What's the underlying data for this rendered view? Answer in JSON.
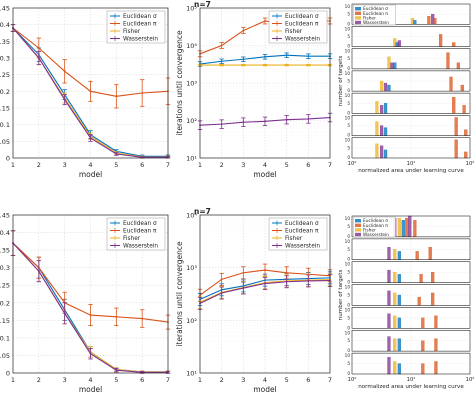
{
  "colors": {
    "euclid_sigma": "#0072BD",
    "euclid_pi": "#D95319",
    "fisher": "#EDB120",
    "wasserstein": "#7E2F8E",
    "grid": "#dcdcdc",
    "axis": "#262626"
  },
  "legend_labels": [
    "Euclidean σ",
    "Euclidean π",
    "Fisher",
    "Wasserstein"
  ],
  "chart_data": [
    {
      "id": "top-left",
      "type": "line",
      "xlabel": "model",
      "ylabel": "divergence values",
      "x": [
        1,
        2,
        3,
        4,
        5,
        6,
        7
      ],
      "xlim": [
        1,
        7
      ],
      "ylim": [
        0,
        0.45
      ],
      "xticks": [
        "1",
        "2",
        "3",
        "4",
        "5",
        "6",
        "7"
      ],
      "yticks": [
        "0",
        "0.05",
        "0.1",
        "0.15",
        "0.2",
        "0.25",
        "0.3",
        "0.35",
        "0.4",
        "0.45"
      ],
      "legend": "top-right",
      "series": [
        {
          "name": "Euclidean σ",
          "key": "euclid_sigma",
          "values": [
            0.39,
            0.31,
            0.19,
            0.07,
            0.02,
            0.005,
            0.005
          ],
          "err": [
            0.01,
            0.02,
            0.015,
            0.012,
            0.005,
            0.004,
            0.004
          ]
        },
        {
          "name": "Euclidean π",
          "key": "euclid_pi",
          "values": [
            0.39,
            0.33,
            0.26,
            0.2,
            0.185,
            0.195,
            0.2
          ],
          "err": [
            0.01,
            0.03,
            0.035,
            0.03,
            0.035,
            0.04,
            0.04
          ]
        },
        {
          "name": "Fisher",
          "key": "fisher",
          "values": [
            0.39,
            0.3,
            0.18,
            0.065,
            0.015,
            0.003,
            0.003
          ],
          "err": [
            0.01,
            0.02,
            0.015,
            0.01,
            0.004,
            0.003,
            0.003
          ]
        },
        {
          "name": "Wasserstein",
          "key": "wasserstein",
          "values": [
            0.39,
            0.3,
            0.175,
            0.06,
            0.012,
            0.002,
            0.002
          ],
          "err": [
            0.01,
            0.02,
            0.015,
            0.01,
            0.004,
            0.002,
            0.002
          ]
        }
      ]
    },
    {
      "id": "top-middle",
      "type": "line",
      "log_y": true,
      "title": "n=7",
      "xlabel": "model",
      "ylabel": "iterations until convergence",
      "x": [
        1,
        2,
        3,
        4,
        5,
        6,
        7
      ],
      "xlim": [
        1,
        7
      ],
      "ylim": [
        10,
        100000
      ],
      "xticks": [
        "1",
        "2",
        "3",
        "4",
        "5",
        "6",
        "7"
      ],
      "yticks": [
        "10¹",
        "10²",
        "10³",
        "10⁴",
        "10⁵"
      ],
      "legend": "top-right",
      "series": [
        {
          "name": "Euclidean σ",
          "key": "euclid_sigma",
          "values": [
            3200,
            3800,
            4300,
            5000,
            5500,
            5200,
            5200
          ],
          "err": [
            1.15,
            1.15,
            1.15,
            1.15,
            1.15,
            1.15,
            1.15
          ]
        },
        {
          "name": "Euclidean π",
          "key": "euclid_pi",
          "values": [
            6000,
            10000,
            25000,
            45000,
            35000,
            45000,
            45000
          ],
          "err": [
            1.2,
            1.2,
            1.2,
            1.2,
            1.2,
            1.2,
            1.2
          ]
        },
        {
          "name": "Fisher",
          "key": "fisher",
          "values": [
            3000,
            3000,
            3000,
            3000,
            3000,
            3000,
            3000
          ],
          "err": [
            1.05,
            1.05,
            1.05,
            1.05,
            1.05,
            1.05,
            1.05
          ]
        },
        {
          "name": "Wasserstein",
          "key": "wasserstein",
          "values": [
            75,
            80,
            90,
            95,
            105,
            110,
            120
          ],
          "err": [
            1.3,
            1.3,
            1.3,
            1.3,
            1.3,
            1.3,
            1.3
          ]
        }
      ]
    },
    {
      "id": "bottom-left",
      "type": "line",
      "xlabel": "model",
      "ylabel": "divergence values",
      "x": [
        1,
        2,
        3,
        4,
        5,
        6,
        7
      ],
      "xlim": [
        1,
        7
      ],
      "ylim": [
        0,
        0.45
      ],
      "xticks": [
        "1",
        "2",
        "3",
        "4",
        "5",
        "6",
        "7"
      ],
      "yticks": [
        "0",
        "0.05",
        "0.1",
        "0.15",
        "0.2",
        "0.25",
        "0.3",
        "0.35",
        "0.4",
        "0.45"
      ],
      "legend": "top-right",
      "series": [
        {
          "name": "Euclidean σ",
          "key": "euclid_sigma",
          "values": [
            0.37,
            0.3,
            0.18,
            0.06,
            0.01,
            0.003,
            0.003
          ],
          "err": [
            0.035,
            0.03,
            0.03,
            0.015,
            0.005,
            0.003,
            0.003
          ]
        },
        {
          "name": "Euclidean π",
          "key": "euclid_pi",
          "values": [
            0.37,
            0.3,
            0.2,
            0.165,
            0.16,
            0.155,
            0.145
          ],
          "err": [
            0.035,
            0.03,
            0.03,
            0.03,
            0.025,
            0.025,
            0.02
          ]
        },
        {
          "name": "Fisher",
          "key": "fisher",
          "values": [
            0.37,
            0.29,
            0.17,
            0.06,
            0.01,
            0.003,
            0.003
          ],
          "err": [
            0.035,
            0.03,
            0.03,
            0.015,
            0.005,
            0.003,
            0.003
          ]
        },
        {
          "name": "Wasserstein",
          "key": "wasserstein",
          "values": [
            0.37,
            0.29,
            0.17,
            0.055,
            0.008,
            0.002,
            0.002
          ],
          "err": [
            0.035,
            0.03,
            0.03,
            0.015,
            0.005,
            0.003,
            0.003
          ]
        }
      ]
    },
    {
      "id": "bottom-middle",
      "type": "line",
      "log_y": true,
      "title": "n=7",
      "xlabel": "model",
      "ylabel": "iterations until convergence",
      "x": [
        1,
        2,
        3,
        4,
        5,
        6,
        7
      ],
      "xlim": [
        1,
        7
      ],
      "ylim": [
        10,
        10000
      ],
      "xticks": [
        "1",
        "2",
        "3",
        "4",
        "5",
        "6",
        "7"
      ],
      "yticks": [
        "10¹",
        "10²",
        "10³",
        "10⁴"
      ],
      "legend": "top-right",
      "series": [
        {
          "name": "Euclidean σ",
          "key": "euclid_sigma",
          "values": [
            250,
            380,
            450,
            580,
            600,
            620,
            640
          ],
          "err": [
            1.3,
            1.3,
            1.3,
            1.3,
            1.3,
            1.3,
            1.3
          ]
        },
        {
          "name": "Euclidean π",
          "key": "euclid_pi",
          "values": [
            300,
            600,
            800,
            900,
            800,
            750,
            700
          ],
          "err": [
            1.3,
            1.3,
            1.3,
            1.3,
            1.3,
            1.3,
            1.3
          ]
        },
        {
          "name": "Fisher",
          "key": "fisher",
          "values": [
            220,
            340,
            420,
            520,
            560,
            580,
            590
          ],
          "err": [
            1.3,
            1.3,
            1.3,
            1.3,
            1.3,
            1.3,
            1.3
          ]
        },
        {
          "name": "Wasserstein",
          "key": "wasserstein",
          "values": [
            210,
            330,
            410,
            500,
            540,
            560,
            570
          ],
          "err": [
            1.3,
            1.3,
            1.3,
            1.3,
            1.3,
            1.3,
            1.3
          ]
        }
      ]
    },
    {
      "id": "top-right",
      "type": "bar",
      "subtype": "histogram-stack",
      "log_x": true,
      "xlabel": "normalized area under learning curve",
      "ylabel": "number of targets",
      "xlim": [
        1,
        100
      ],
      "xticks": [
        "10⁰",
        "10¹",
        "10²"
      ],
      "ylim": [
        0,
        10
      ],
      "yticks": [
        "0",
        "5",
        "10"
      ],
      "panels": [
        {
          "model": 1,
          "bars": [
            {
              "key": "fisher",
              "x": 10,
              "h": 3
            },
            {
              "key": "euclid_sigma",
              "x": 11,
              "h": 2
            },
            {
              "key": "euclid_pi",
              "x": 19,
              "h": 4
            },
            {
              "key": "wasserstein",
              "x": 22,
              "h": 5
            },
            {
              "key": "euclid_pi",
              "x": 24,
              "h": 3
            }
          ]
        },
        {
          "model": 2,
          "bars": [
            {
              "key": "fisher",
              "x": 5,
              "h": 4
            },
            {
              "key": "euclid_sigma",
              "x": 5.5,
              "h": 2
            },
            {
              "key": "wasserstein",
              "x": 6,
              "h": 3
            },
            {
              "key": "euclid_pi",
              "x": 30,
              "h": 6
            },
            {
              "key": "euclid_pi",
              "x": 50,
              "h": 2
            }
          ]
        },
        {
          "model": 3,
          "bars": [
            {
              "key": "fisher",
              "x": 4,
              "h": 6
            },
            {
              "key": "wasserstein",
              "x": 4.5,
              "h": 3
            },
            {
              "key": "euclid_sigma",
              "x": 5,
              "h": 3
            },
            {
              "key": "euclid_pi",
              "x": 40,
              "h": 8
            },
            {
              "key": "euclid_pi",
              "x": 60,
              "h": 3
            }
          ]
        },
        {
          "model": 4,
          "bars": [
            {
              "key": "fisher",
              "x": 3,
              "h": 5
            },
            {
              "key": "wasserstein",
              "x": 3.5,
              "h": 4
            },
            {
              "key": "euclid_sigma",
              "x": 4,
              "h": 3
            },
            {
              "key": "euclid_pi",
              "x": 45,
              "h": 7
            },
            {
              "key": "euclid_pi",
              "x": 70,
              "h": 3
            }
          ]
        },
        {
          "model": 5,
          "bars": [
            {
              "key": "fisher",
              "x": 2.5,
              "h": 6
            },
            {
              "key": "wasserstein",
              "x": 3,
              "h": 4
            },
            {
              "key": "euclid_sigma",
              "x": 3.5,
              "h": 5
            },
            {
              "key": "euclid_pi",
              "x": 50,
              "h": 8
            },
            {
              "key": "euclid_pi",
              "x": 75,
              "h": 4
            }
          ]
        },
        {
          "model": 6,
          "bars": [
            {
              "key": "fisher",
              "x": 2.5,
              "h": 7
            },
            {
              "key": "wasserstein",
              "x": 3,
              "h": 5
            },
            {
              "key": "euclid_sigma",
              "x": 3.5,
              "h": 4
            },
            {
              "key": "euclid_pi",
              "x": 55,
              "h": 9
            },
            {
              "key": "euclid_pi",
              "x": 80,
              "h": 3
            }
          ]
        },
        {
          "model": 7,
          "bars": [
            {
              "key": "fisher",
              "x": 2.5,
              "h": 7
            },
            {
              "key": "wasserstein",
              "x": 3,
              "h": 6
            },
            {
              "key": "euclid_sigma",
              "x": 3.5,
              "h": 4
            },
            {
              "key": "euclid_pi",
              "x": 55,
              "h": 9
            },
            {
              "key": "euclid_pi",
              "x": 80,
              "h": 3
            }
          ]
        }
      ]
    },
    {
      "id": "bottom-right",
      "type": "bar",
      "subtype": "histogram-stack",
      "log_x": true,
      "xlabel": "normalized area under learning curve",
      "ylabel": "number of targets",
      "xlim": [
        1,
        100
      ],
      "xticks": [
        "10⁰",
        "10¹",
        "10²"
      ],
      "ylim": [
        0,
        10
      ],
      "yticks": [
        "0",
        "5",
        "10"
      ],
      "panels": [
        {
          "model": 1,
          "bars": [
            {
              "key": "wasserstein",
              "x": 5,
              "h": 9
            },
            {
              "key": "fisher",
              "x": 6,
              "h": 9
            },
            {
              "key": "euclid_sigma",
              "x": 7,
              "h": 8
            },
            {
              "key": "euclid_pi",
              "x": 8,
              "h": 9
            },
            {
              "key": "wasserstein",
              "x": 9,
              "h": 10
            },
            {
              "key": "euclid_pi",
              "x": 11,
              "h": 8
            }
          ]
        },
        {
          "model": 2,
          "bars": [
            {
              "key": "wasserstein",
              "x": 4,
              "h": 6
            },
            {
              "key": "fisher",
              "x": 5,
              "h": 5
            },
            {
              "key": "euclid_sigma",
              "x": 6,
              "h": 4
            },
            {
              "key": "euclid_pi",
              "x": 12,
              "h": 4
            },
            {
              "key": "euclid_pi",
              "x": 20,
              "h": 6
            }
          ]
        },
        {
          "model": 3,
          "bars": [
            {
              "key": "wasserstein",
              "x": 4,
              "h": 6
            },
            {
              "key": "fisher",
              "x": 5,
              "h": 5
            },
            {
              "key": "euclid_sigma",
              "x": 6,
              "h": 4
            },
            {
              "key": "euclid_pi",
              "x": 14,
              "h": 4
            },
            {
              "key": "euclid_pi",
              "x": 22,
              "h": 5
            }
          ]
        },
        {
          "model": 4,
          "bars": [
            {
              "key": "wasserstein",
              "x": 4,
              "h": 7
            },
            {
              "key": "fisher",
              "x": 5,
              "h": 6
            },
            {
              "key": "euclid_sigma",
              "x": 6,
              "h": 5
            },
            {
              "key": "euclid_pi",
              "x": 13,
              "h": 4
            },
            {
              "key": "euclid_pi",
              "x": 22,
              "h": 6
            }
          ]
        },
        {
          "model": 5,
          "bars": [
            {
              "key": "wasserstein",
              "x": 4,
              "h": 7
            },
            {
              "key": "fisher",
              "x": 5,
              "h": 6
            },
            {
              "key": "euclid_sigma",
              "x": 6,
              "h": 5
            },
            {
              "key": "euclid_pi",
              "x": 15,
              "h": 5
            },
            {
              "key": "euclid_pi",
              "x": 25,
              "h": 6
            }
          ]
        },
        {
          "model": 6,
          "bars": [
            {
              "key": "wasserstein",
              "x": 4,
              "h": 7
            },
            {
              "key": "fisher",
              "x": 5,
              "h": 6
            },
            {
              "key": "euclid_sigma",
              "x": 6,
              "h": 6
            },
            {
              "key": "euclid_pi",
              "x": 15,
              "h": 5
            },
            {
              "key": "euclid_pi",
              "x": 25,
              "h": 6
            }
          ]
        },
        {
          "model": 7,
          "bars": [
            {
              "key": "wasserstein",
              "x": 4,
              "h": 8
            },
            {
              "key": "fisher",
              "x": 5,
              "h": 6
            },
            {
              "key": "euclid_sigma",
              "x": 6,
              "h": 5
            },
            {
              "key": "euclid_pi",
              "x": 15,
              "h": 5
            },
            {
              "key": "euclid_pi",
              "x": 25,
              "h": 6
            }
          ]
        }
      ]
    }
  ]
}
